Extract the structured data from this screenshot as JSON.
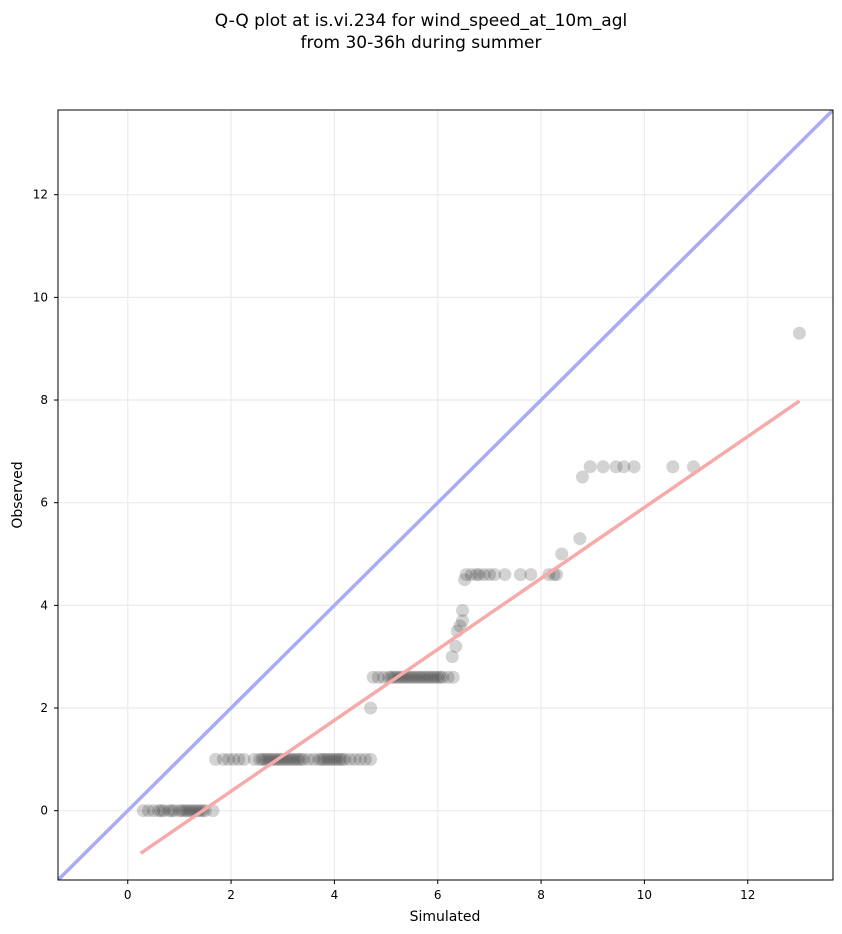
{
  "chart_data": {
    "type": "scatter",
    "title": "Q-Q plot at is.vi.234 for wind_speed_at_10m_agl",
    "subtitle": "from 30-36h during summer",
    "xlabel": "Simulated",
    "ylabel": "Observed",
    "xlim": [
      -1.35,
      13.65
    ],
    "ylim": [
      -1.35,
      13.65
    ],
    "xticks": [
      0,
      2,
      4,
      6,
      8,
      10,
      12
    ],
    "yticks": [
      0,
      2,
      4,
      6,
      8,
      10,
      12
    ],
    "grid": true,
    "colors": {
      "points": "#222222",
      "identity_line": "#aaaaf6",
      "fit_line": "#f6aaaa"
    },
    "identity_line": {
      "from": [
        -1.35,
        -1.35
      ],
      "to": [
        13.65,
        13.65
      ]
    },
    "fit_line": {
      "from": [
        0.25,
        -0.83
      ],
      "to": [
        13.0,
        7.98
      ]
    },
    "series": [
      {
        "points": [
          [
            0.3,
            0
          ],
          [
            0.4,
            0
          ],
          [
            0.5,
            0
          ],
          [
            0.6,
            0
          ],
          [
            0.65,
            0
          ],
          [
            0.7,
            0
          ],
          [
            0.8,
            0
          ],
          [
            0.85,
            0
          ],
          [
            0.9,
            0
          ],
          [
            1.0,
            0
          ],
          [
            1.05,
            0
          ],
          [
            1.1,
            0
          ],
          [
            1.15,
            0
          ],
          [
            1.2,
            0
          ],
          [
            1.25,
            0
          ],
          [
            1.3,
            0
          ],
          [
            1.35,
            0
          ],
          [
            1.4,
            0
          ],
          [
            1.45,
            0
          ],
          [
            1.5,
            0
          ],
          [
            1.65,
            0
          ],
          [
            1.7,
            1
          ],
          [
            1.85,
            1
          ],
          [
            1.95,
            1
          ],
          [
            2.05,
            1
          ],
          [
            2.15,
            1
          ],
          [
            2.25,
            1
          ],
          [
            2.45,
            1
          ],
          [
            2.55,
            1
          ],
          [
            2.6,
            1
          ],
          [
            2.65,
            1
          ],
          [
            2.7,
            1
          ],
          [
            2.75,
            1
          ],
          [
            2.8,
            1
          ],
          [
            2.85,
            1
          ],
          [
            2.9,
            1
          ],
          [
            2.95,
            1
          ],
          [
            3.0,
            1
          ],
          [
            3.05,
            1
          ],
          [
            3.1,
            1
          ],
          [
            3.15,
            1
          ],
          [
            3.2,
            1
          ],
          [
            3.25,
            1
          ],
          [
            3.3,
            1
          ],
          [
            3.35,
            1
          ],
          [
            3.4,
            1
          ],
          [
            3.5,
            1
          ],
          [
            3.6,
            1
          ],
          [
            3.7,
            1
          ],
          [
            3.75,
            1
          ],
          [
            3.8,
            1
          ],
          [
            3.85,
            1
          ],
          [
            3.9,
            1
          ],
          [
            3.95,
            1
          ],
          [
            4.0,
            1
          ],
          [
            4.05,
            1
          ],
          [
            4.1,
            1
          ],
          [
            4.15,
            1
          ],
          [
            4.2,
            1
          ],
          [
            4.3,
            1
          ],
          [
            4.4,
            1
          ],
          [
            4.5,
            1
          ],
          [
            4.6,
            1
          ],
          [
            4.7,
            1
          ],
          [
            4.7,
            2
          ],
          [
            4.75,
            2.6
          ],
          [
            4.85,
            2.6
          ],
          [
            4.95,
            2.6
          ],
          [
            5.05,
            2.6
          ],
          [
            5.1,
            2.6
          ],
          [
            5.15,
            2.6
          ],
          [
            5.2,
            2.6
          ],
          [
            5.25,
            2.6
          ],
          [
            5.3,
            2.6
          ],
          [
            5.35,
            2.6
          ],
          [
            5.4,
            2.6
          ],
          [
            5.45,
            2.6
          ],
          [
            5.5,
            2.6
          ],
          [
            5.55,
            2.6
          ],
          [
            5.6,
            2.6
          ],
          [
            5.65,
            2.6
          ],
          [
            5.7,
            2.6
          ],
          [
            5.75,
            2.6
          ],
          [
            5.8,
            2.6
          ],
          [
            5.85,
            2.6
          ],
          [
            5.9,
            2.6
          ],
          [
            5.95,
            2.6
          ],
          [
            6.0,
            2.6
          ],
          [
            6.05,
            2.6
          ],
          [
            6.1,
            2.6
          ],
          [
            6.2,
            2.6
          ],
          [
            6.3,
            2.6
          ],
          [
            6.28,
            3
          ],
          [
            6.35,
            3.2
          ],
          [
            6.38,
            3.5
          ],
          [
            6.43,
            3.6
          ],
          [
            6.48,
            3.7
          ],
          [
            6.48,
            3.9
          ],
          [
            6.52,
            4.5
          ],
          [
            6.55,
            4.6
          ],
          [
            6.65,
            4.6
          ],
          [
            6.75,
            4.6
          ],
          [
            6.8,
            4.6
          ],
          [
            6.9,
            4.6
          ],
          [
            7.0,
            4.6
          ],
          [
            7.1,
            4.6
          ],
          [
            7.3,
            4.6
          ],
          [
            7.6,
            4.6
          ],
          [
            7.8,
            4.6
          ],
          [
            8.15,
            4.6
          ],
          [
            8.25,
            4.6
          ],
          [
            8.3,
            4.6
          ],
          [
            8.4,
            5
          ],
          [
            8.75,
            5.3
          ],
          [
            8.8,
            6.5
          ],
          [
            8.95,
            6.7
          ],
          [
            9.2,
            6.7
          ],
          [
            9.45,
            6.7
          ],
          [
            9.6,
            6.7
          ],
          [
            9.8,
            6.7
          ],
          [
            10.55,
            6.7
          ],
          [
            10.95,
            6.7
          ],
          [
            13.0,
            9.3
          ]
        ]
      }
    ]
  }
}
